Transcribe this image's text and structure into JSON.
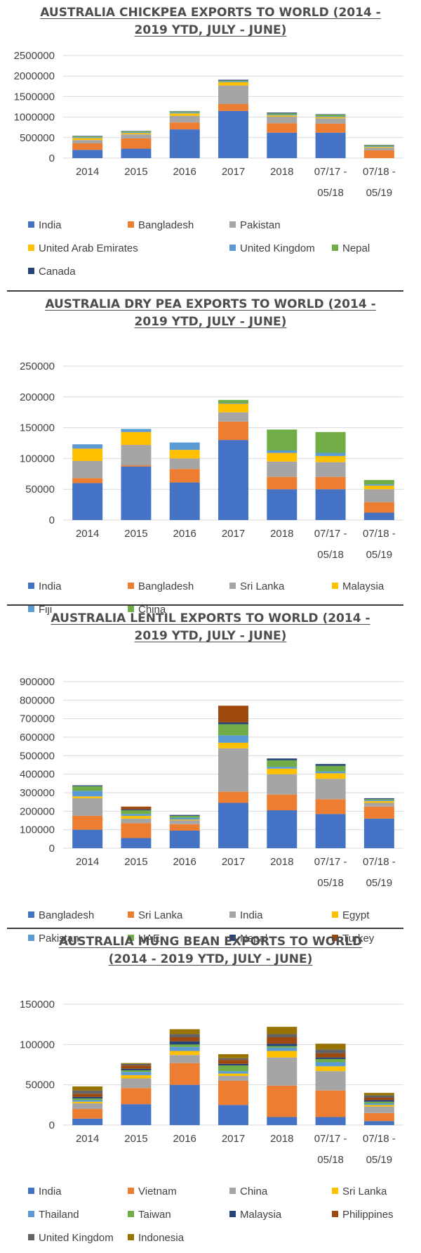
{
  "chart_data": [
    {
      "type": "bar",
      "stacked": true,
      "title_lines": [
        "AUSTRALIA CHICKPEA EXPORTS TO WORLD (2014 -",
        "2019 YTD, JULY - JUNE)"
      ],
      "category_lines": [
        [
          "2014"
        ],
        [
          "2015"
        ],
        [
          "2016"
        ],
        [
          "2017"
        ],
        [
          "2018"
        ],
        [
          "07/17 -",
          "05/18"
        ],
        [
          "07/18 -",
          "05/19"
        ]
      ],
      "ylim": [
        0,
        2500000
      ],
      "yticks": [
        "0",
        "500000",
        "1000000",
        "1500000",
        "2000000",
        "2500000"
      ],
      "grid": true,
      "legend_position": "bottom",
      "series": [
        {
          "name": "India",
          "color": "#4472c4",
          "values": [
            200000,
            230000,
            700000,
            1150000,
            620000,
            620000,
            0
          ]
        },
        {
          "name": "Bangladesh",
          "color": "#ed7d31",
          "values": [
            160000,
            250000,
            170000,
            170000,
            230000,
            220000,
            190000
          ]
        },
        {
          "name": "Pakistan",
          "color": "#a5a5a5",
          "values": [
            80000,
            100000,
            160000,
            450000,
            160000,
            130000,
            60000
          ]
        },
        {
          "name": "United Arab Emirates",
          "color": "#ffc000",
          "values": [
            50000,
            30000,
            60000,
            80000,
            30000,
            30000,
            20000
          ]
        },
        {
          "name": "United Kingdom",
          "color": "#5b9bd5",
          "values": [
            20000,
            20000,
            20000,
            20000,
            20000,
            20000,
            20000
          ]
        },
        {
          "name": "Nepal",
          "color": "#70ad47",
          "values": [
            20000,
            20000,
            20000,
            20000,
            30000,
            40000,
            20000
          ]
        },
        {
          "name": "Canada",
          "color": "#264478",
          "values": [
            10000,
            10000,
            10000,
            20000,
            20000,
            10000,
            10000
          ]
        }
      ]
    },
    {
      "type": "bar",
      "stacked": true,
      "title_lines": [
        "AUSTRALIA DRY PEA EXPORTS TO WORLD (2014 -",
        "2019 YTD, JULY - JUNE)"
      ],
      "category_lines": [
        [
          "2014"
        ],
        [
          "2015"
        ],
        [
          "2016"
        ],
        [
          "2017"
        ],
        [
          "2018"
        ],
        [
          "07/17 -",
          "05/18"
        ],
        [
          "07/18 -",
          "05/19"
        ]
      ],
      "ylim": [
        0,
        250000
      ],
      "yticks": [
        "0",
        "50000",
        "100000",
        "150000",
        "200000",
        "250000"
      ],
      "grid": true,
      "legend_position": "bottom",
      "series": [
        {
          "name": "India",
          "color": "#4472c4",
          "values": [
            60000,
            87000,
            61000,
            130000,
            50000,
            50000,
            12000
          ]
        },
        {
          "name": "Bangladesh",
          "color": "#ed7d31",
          "values": [
            8000,
            2000,
            22000,
            30000,
            20000,
            20000,
            17000
          ]
        },
        {
          "name": "Sri Lanka",
          "color": "#a5a5a5",
          "values": [
            28000,
            33000,
            17000,
            15000,
            25000,
            24000,
            21000
          ]
        },
        {
          "name": "Malaysia",
          "color": "#ffc000",
          "values": [
            20000,
            21000,
            14000,
            14000,
            14000,
            10000,
            6000
          ]
        },
        {
          "name": "Fiji",
          "color": "#5b9bd5",
          "values": [
            7000,
            5000,
            12000,
            1000,
            4000,
            5000,
            2000
          ]
        },
        {
          "name": "China",
          "color": "#70ad47",
          "values": [
            0,
            0,
            0,
            5000,
            34000,
            34000,
            7000
          ]
        }
      ]
    },
    {
      "type": "bar",
      "stacked": true,
      "title_lines": [
        "AUSTRALIA LENTIL EXPORTS TO WORLD (2014 -",
        "2019 YTD, JULY - JUNE)"
      ],
      "category_lines": [
        [
          "2014"
        ],
        [
          "2015"
        ],
        [
          "2016"
        ],
        [
          "2017"
        ],
        [
          "2018"
        ],
        [
          "07/17 -",
          "05/18"
        ],
        [
          "07/18 -",
          "05/19"
        ]
      ],
      "ylim": [
        0,
        900000
      ],
      "yticks": [
        "0",
        "100000",
        "200000",
        "300000",
        "400000",
        "500000",
        "600000",
        "700000",
        "800000",
        "900000"
      ],
      "grid": true,
      "legend_position": "bottom",
      "series": [
        {
          "name": "Bangladesh",
          "color": "#4472c4",
          "values": [
            100000,
            55000,
            95000,
            245000,
            205000,
            185000,
            160000
          ]
        },
        {
          "name": "Sri Lanka",
          "color": "#ed7d31",
          "values": [
            75000,
            80000,
            35000,
            60000,
            85000,
            80000,
            65000
          ]
        },
        {
          "name": "India",
          "color": "#a5a5a5",
          "values": [
            95000,
            25000,
            20000,
            235000,
            110000,
            110000,
            20000
          ]
        },
        {
          "name": "Egypt",
          "color": "#ffc000",
          "values": [
            10000,
            15000,
            5000,
            30000,
            30000,
            30000,
            10000
          ]
        },
        {
          "name": "Pakistan",
          "color": "#5b9bd5",
          "values": [
            30000,
            10000,
            10000,
            40000,
            10000,
            10000,
            5000
          ]
        },
        {
          "name": "UAE",
          "color": "#70ad47",
          "values": [
            25000,
            20000,
            10000,
            60000,
            35000,
            30000,
            5000
          ]
        },
        {
          "name": "Nepal",
          "color": "#264478",
          "values": [
            5000,
            5000,
            5000,
            10000,
            10000,
            10000,
            5000
          ]
        },
        {
          "name": "Turkey",
          "color": "#9e480e",
          "values": [
            0,
            15000,
            0,
            90000,
            0,
            0,
            0
          ]
        }
      ]
    },
    {
      "type": "bar",
      "stacked": true,
      "title_lines": [
        "AUSTRALIA MUNG BEAN EXPORTS TO WORLD",
        "(2014 - 2019 YTD, JULY - JUNE)"
      ],
      "category_lines": [
        [
          "2014"
        ],
        [
          "2015"
        ],
        [
          "2016"
        ],
        [
          "2017"
        ],
        [
          "2018"
        ],
        [
          "07/17 -",
          "05/18"
        ],
        [
          "07/18 -",
          "05/19"
        ]
      ],
      "ylim": [
        0,
        150000
      ],
      "yticks": [
        "0",
        "50000",
        "100000",
        "150000"
      ],
      "grid": true,
      "legend_position": "bottom",
      "series": [
        {
          "name": "India",
          "color": "#4472c4",
          "values": [
            8000,
            26000,
            50000,
            25000,
            10000,
            10000,
            5000
          ]
        },
        {
          "name": "Vietnam",
          "color": "#ed7d31",
          "values": [
            12000,
            20000,
            27000,
            30000,
            39000,
            33000,
            10000
          ]
        },
        {
          "name": "China",
          "color": "#a5a5a5",
          "values": [
            7000,
            12000,
            10000,
            6000,
            35000,
            24000,
            8000
          ]
        },
        {
          "name": "Sri Lanka",
          "color": "#ffc000",
          "values": [
            2000,
            4000,
            5000,
            3000,
            8000,
            6000,
            2000
          ]
        },
        {
          "name": "Thailand",
          "color": "#5b9bd5",
          "values": [
            2000,
            4000,
            5000,
            3000,
            4000,
            5000,
            2000
          ]
        },
        {
          "name": "Taiwan",
          "color": "#70ad47",
          "values": [
            2000,
            2000,
            3000,
            7000,
            2000,
            4000,
            2000
          ]
        },
        {
          "name": "Malaysia",
          "color": "#264478",
          "values": [
            2000,
            2000,
            4000,
            2000,
            3000,
            2000,
            2000
          ]
        },
        {
          "name": "Philippines",
          "color": "#9e480e",
          "values": [
            4000,
            4000,
            5000,
            5000,
            8000,
            5000,
            3000
          ]
        },
        {
          "name": "United Kingdom",
          "color": "#636363",
          "values": [
            4000,
            2000,
            4000,
            2000,
            4000,
            5000,
            3000
          ]
        },
        {
          "name": "Indonesia",
          "color": "#997300",
          "values": [
            5000,
            1000,
            6000,
            5000,
            9000,
            7000,
            3000
          ]
        }
      ]
    }
  ]
}
